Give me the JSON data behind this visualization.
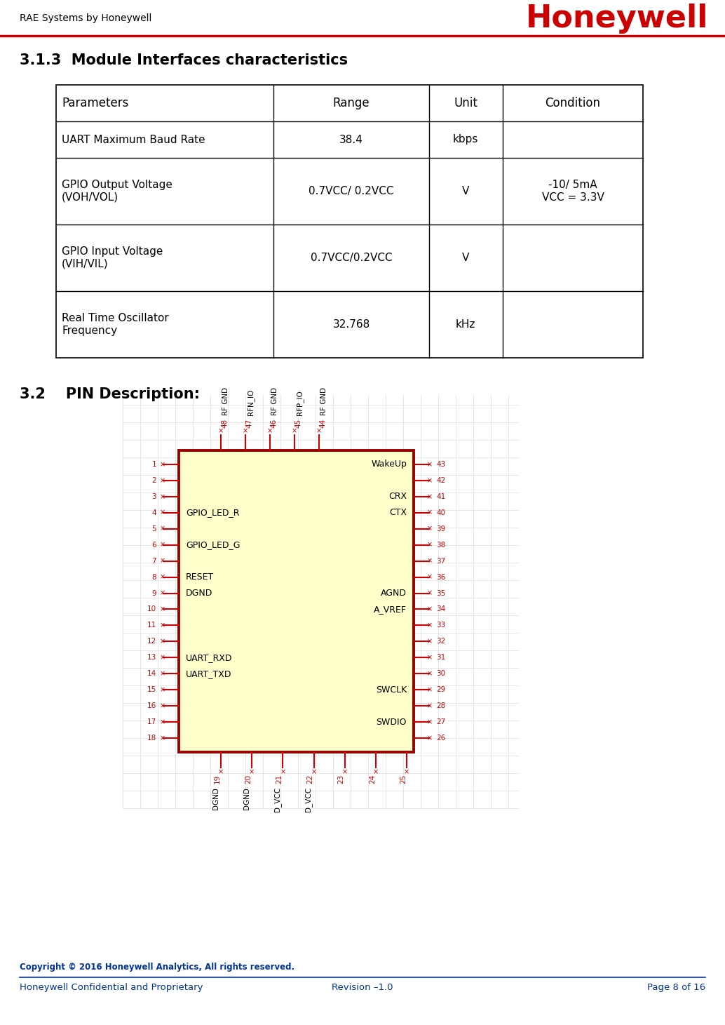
{
  "header_left": "RAE Systems by Honeywell",
  "header_logo": "Honeywell",
  "header_line_color": "#cc0000",
  "section_title": "3.1.3  Module Interfaces characteristics",
  "table_headers": [
    "Parameters",
    "Range",
    "Unit",
    "Condition"
  ],
  "table_rows": [
    [
      "UART Maximum Baud Rate",
      "38.4",
      "kbps",
      ""
    ],
    [
      "GPIO Output Voltage\n(VOH/VOL)",
      "0.7VCC/ 0.2VCC",
      "V",
      "-10/ 5mA\nVCC = 3.3V"
    ],
    [
      "GPIO Input Voltage\n(VIH/VIL)",
      "0.7VCC/0.2VCC",
      "V",
      ""
    ],
    [
      "Real Time Oscillator\nFrequency",
      "32.768",
      "kHz",
      ""
    ]
  ],
  "section2_title": "3.2    PIN Description:",
  "footer_copyright": "Copyright © 2016 Honeywell Analytics, All rights reserved.",
  "footer_line_color": "#003399",
  "footer_left": "Honeywell Confidential and Proprietary",
  "footer_center": "Revision –1.0",
  "footer_right": "Page 8 of 16",
  "bg_color": "#ffffff",
  "text_color": "#000000",
  "chip_body_color": "#ffffcc",
  "chip_border_color": "#990000",
  "left_labels": {
    "4": "GPIO_LED_R",
    "6": "GPIO_LED_G",
    "8": "RESET",
    "9": "DGND",
    "13": "UART_RXD",
    "14": "UART_TXD"
  },
  "right_labels": {
    "43": "WakeUp",
    "41": "CRX",
    "40": "CTX",
    "35": "AGND",
    "34": "A_VREF",
    "29": "SWCLK",
    "27": "SWDIO"
  },
  "top_pins": [
    "48",
    "47",
    "46",
    "45",
    "44"
  ],
  "top_labels": [
    "RF GND",
    "RFN_IO",
    "RF GND",
    "RFP_IO",
    "RF GND"
  ],
  "bottom_pins": [
    "19",
    "20",
    "21",
    "22",
    "23",
    "24",
    "25"
  ],
  "bottom_labels": [
    "DGND",
    "DGND",
    "D_VCC",
    "D_VCC",
    "",
    "",
    ""
  ]
}
